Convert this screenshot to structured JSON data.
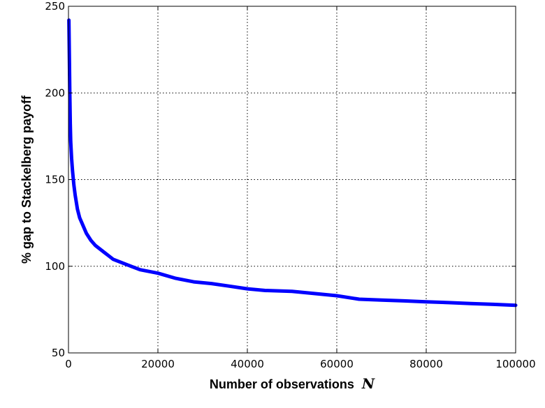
{
  "chart_data": {
    "type": "line",
    "title": "",
    "xlabel": "Number of observations",
    "xlabel_symbol": "N",
    "ylabel": "% gap to Stackelberg payoff",
    "xlim": [
      0,
      100000
    ],
    "ylim": [
      50,
      250
    ],
    "grid": true,
    "xticks": [
      {
        "value": 0,
        "label": "0"
      },
      {
        "value": 20000,
        "label": "20000"
      },
      {
        "value": 40000,
        "label": "40000"
      },
      {
        "value": 60000,
        "label": "60000"
      },
      {
        "value": 80000,
        "label": "80000"
      },
      {
        "value": 100000,
        "label": "100000"
      }
    ],
    "yticks": [
      {
        "value": 50,
        "label": "50"
      },
      {
        "value": 100,
        "label": "100"
      },
      {
        "value": 150,
        "label": "150"
      },
      {
        "value": 200,
        "label": "200"
      },
      {
        "value": 250,
        "label": "250"
      }
    ],
    "series": [
      {
        "color": "#0000ff",
        "x": [
          100,
          200,
          300,
          400,
          500,
          700,
          900,
          1200,
          1500,
          2000,
          2500,
          3000,
          4000,
          5000,
          6000,
          7000,
          8000,
          9000,
          10000,
          12000,
          14000,
          16000,
          18000,
          20000,
          24000,
          28000,
          32000,
          36000,
          40000,
          44000,
          50000,
          56000,
          60000,
          65000,
          70000,
          75000,
          80000,
          85000,
          90000,
          95000,
          100000
        ],
        "y": [
          242,
          220,
          200,
          182,
          172,
          162,
          155,
          147,
          141,
          133,
          128,
          125,
          119,
          115,
          112,
          110,
          108,
          106,
          104,
          102,
          100,
          98,
          97,
          96,
          93,
          91,
          90,
          88.5,
          87,
          86,
          85.5,
          84,
          83,
          81,
          80.5,
          80,
          79.5,
          79,
          78.5,
          78,
          77.5
        ]
      }
    ]
  }
}
